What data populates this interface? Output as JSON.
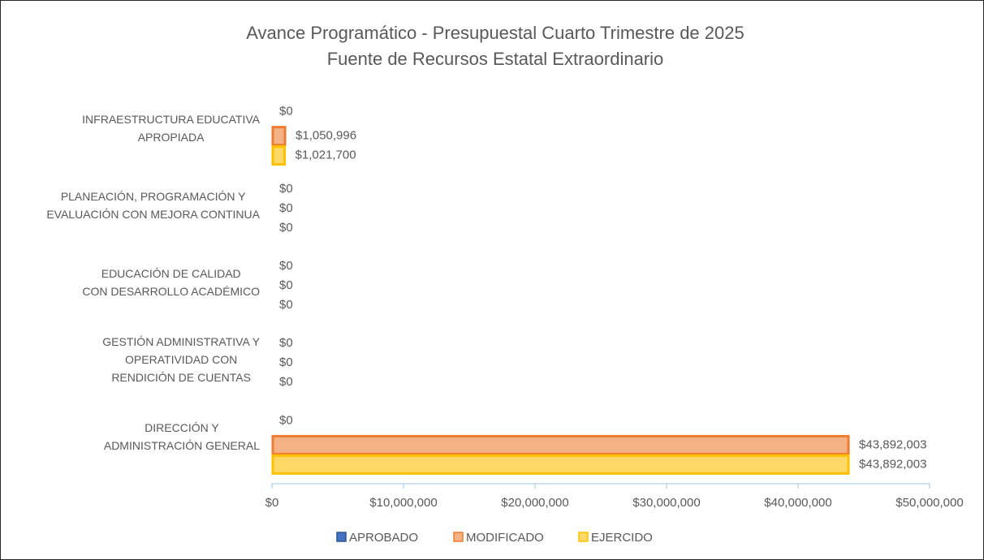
{
  "chart_data": {
    "type": "hbar",
    "title": "Avance Programático - Presupuestal Cuarto Trimestre de 2025",
    "subtitle": "Fuente de Recursos Estatal Extraordinario",
    "categories": [
      "INFRAESTRUCTURA EDUCATIVA\nAPROPIADA",
      "PLANEACIÓN, PROGRAMACIÓN Y\nEVALUACIÓN CON MEJORA CONTINUA",
      "EDUCACIÓN DE CALIDAD\nCON DESARROLLO ACADÉMICO",
      "GESTIÓN ADMINISTRATIVA Y\nOPERATIVIDAD CON\nRENDICIÓN DE CUENTAS",
      "DIRECCIÓN Y\nADMINISTRACIÓN GENERAL"
    ],
    "series": [
      {
        "name": "APROBADO",
        "color": "#4472c4",
        "border": "#2f5597",
        "values": [
          0,
          0,
          0,
          0,
          0
        ],
        "value_labels": [
          "$0",
          "$0",
          "$0",
          "$0",
          "$0"
        ]
      },
      {
        "name": "MODIFICADO",
        "color": "#f4b183",
        "border": "#ed7d31",
        "values": [
          1050996,
          0,
          0,
          0,
          43892003
        ],
        "value_labels": [
          "$1,050,996",
          "$0",
          "$0",
          "$0",
          "$43,892,003"
        ]
      },
      {
        "name": "EJERCIDO",
        "color": "#ffd966",
        "border": "#ffc000",
        "values": [
          1021700,
          0,
          0,
          0,
          43892003
        ],
        "value_labels": [
          "$1,021,700",
          "$0",
          "$0",
          "$0",
          "$43,892,003"
        ]
      }
    ],
    "xlim": [
      0,
      50000000
    ],
    "xticks": [
      {
        "value": 0,
        "label": "$0"
      },
      {
        "value": 10000000,
        "label": "$10,000,000"
      },
      {
        "value": 20000000,
        "label": "$20,000,000"
      },
      {
        "value": 30000000,
        "label": "$30,000,000"
      },
      {
        "value": 40000000,
        "label": "$40,000,000"
      },
      {
        "value": 50000000,
        "label": "$50,000,000"
      }
    ],
    "grid": false,
    "legend": "bottom"
  }
}
